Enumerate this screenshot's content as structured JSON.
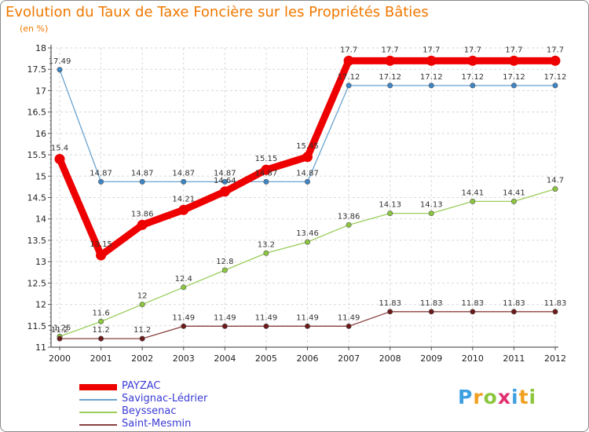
{
  "title": "Evolution du Taux de Taxe Foncière sur les Propriétés Bâties",
  "subtitle": "(en %)",
  "logo": {
    "letters": [
      "P",
      "r",
      "o",
      "x",
      "i",
      "t",
      "i"
    ],
    "colors": [
      "#3da0e0",
      "#f0a020",
      "#8cc63f",
      "#e03070",
      "#3da0e0",
      "#f0a020",
      "#8cc63f"
    ]
  },
  "chart_data": {
    "type": "line",
    "title": "Evolution du Taux de Taxe Foncière sur les Propriétés Bâties",
    "ylabel": "(en %)",
    "xlabel": "",
    "categories": [
      "2000",
      "2001",
      "2002",
      "2003",
      "2004",
      "2005",
      "2006",
      "2007",
      "2008",
      "2009",
      "2010",
      "2011",
      "2012"
    ],
    "ylim": [
      11,
      18
    ],
    "yticks": [
      "11",
      "11.5",
      "12",
      "12.5",
      "13",
      "13.5",
      "14",
      "14.5",
      "15",
      "15.5",
      "16",
      "16.5",
      "17",
      "17.5",
      "18"
    ],
    "legend_position": "bottom-left",
    "series": [
      {
        "name": "Savignac-Lédrier",
        "color": "#6aa3d0",
        "marker": "#3d85c6",
        "values": [
          17.49,
          14.87,
          14.87,
          14.87,
          14.87,
          14.87,
          14.87,
          17.12,
          17.12,
          17.12,
          17.12,
          17.12,
          17.12
        ],
        "labels": [
          "17.49",
          "14.87",
          "14.87",
          "14.87",
          "14.87",
          "14.87",
          "14.87",
          "17.12",
          "17.12",
          "17.12",
          "17.12",
          "17.12",
          "17.12"
        ]
      },
      {
        "name": "Beyssenac",
        "color": "#9acd5a",
        "marker": "#8cc63f",
        "values": [
          11.25,
          11.6,
          12,
          12.4,
          12.8,
          13.2,
          13.46,
          13.86,
          14.13,
          14.13,
          14.41,
          14.41,
          14.7
        ],
        "labels": [
          "11.25",
          "11.6",
          "12",
          "12.4",
          "12.8",
          "13.2",
          "13.46",
          "13.86",
          "14.13",
          "14.13",
          "14.41",
          "14.41",
          "14.7"
        ]
      },
      {
        "name": "Saint-Mesmin",
        "color": "#8b4040",
        "marker": "#6b1a1a",
        "values": [
          11.2,
          11.2,
          11.2,
          11.49,
          11.49,
          11.49,
          11.49,
          11.49,
          11.83,
          11.83,
          11.83,
          11.83,
          11.83
        ],
        "labels": [
          "11.2",
          "11.2",
          "11.2",
          "11.49",
          "11.49",
          "11.49",
          "11.49",
          "11.49",
          "11.83",
          "11.83",
          "11.83",
          "11.83",
          "11.83"
        ]
      },
      {
        "name": "PAYZAC",
        "color": "#ee0000",
        "marker": "#ee0000",
        "thick": true,
        "values": [
          15.4,
          13.15,
          13.86,
          14.21,
          14.64,
          15.15,
          15.45,
          17.7,
          17.7,
          17.7,
          17.7,
          17.7,
          17.7
        ],
        "labels": [
          "15.4",
          "13.15",
          "13.86",
          "14.21",
          "14.64",
          "15.15",
          "15.45",
          "17.7",
          "17.7",
          "17.7",
          "17.7",
          "17.7",
          "17.7"
        ]
      }
    ],
    "legend_order": [
      "PAYZAC",
      "Savignac-Lédrier",
      "Beyssenac",
      "Saint-Mesmin"
    ]
  }
}
